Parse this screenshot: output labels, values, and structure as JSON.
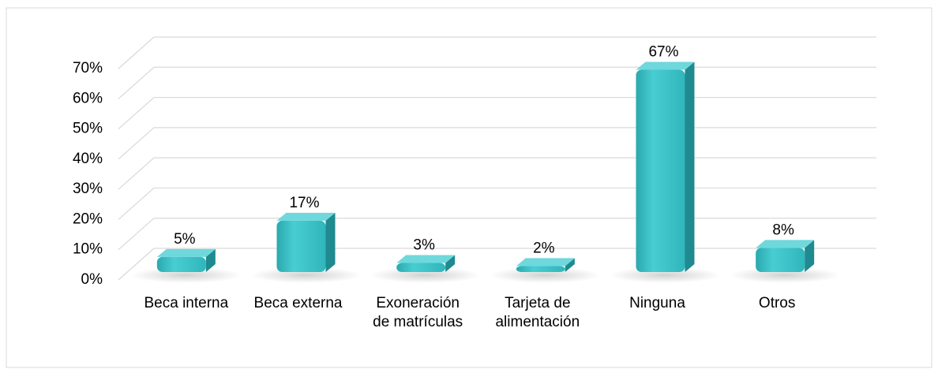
{
  "chart_data": {
    "type": "bar3d",
    "categories": [
      "Beca interna",
      "Beca externa",
      "Exoneración de matrículas",
      "Tarjeta de alimentación",
      "Ninguna",
      "Otros"
    ],
    "values": [
      5,
      17,
      3,
      2,
      67,
      8
    ],
    "value_labels": [
      "5%",
      "17%",
      "3%",
      "2%",
      "67%",
      "8%"
    ],
    "color": "#3cbfc4",
    "ylim": [
      0,
      70
    ],
    "yticks": [
      {
        "value": 0,
        "label": "0%"
      },
      {
        "value": 10,
        "label": "10%"
      },
      {
        "value": 20,
        "label": "20%"
      },
      {
        "value": 30,
        "label": "30%"
      },
      {
        "value": 40,
        "label": "40%"
      },
      {
        "value": 50,
        "label": "50%"
      },
      {
        "value": 60,
        "label": "60%"
      },
      {
        "value": 70,
        "label": "70%"
      }
    ],
    "grid": true
  }
}
